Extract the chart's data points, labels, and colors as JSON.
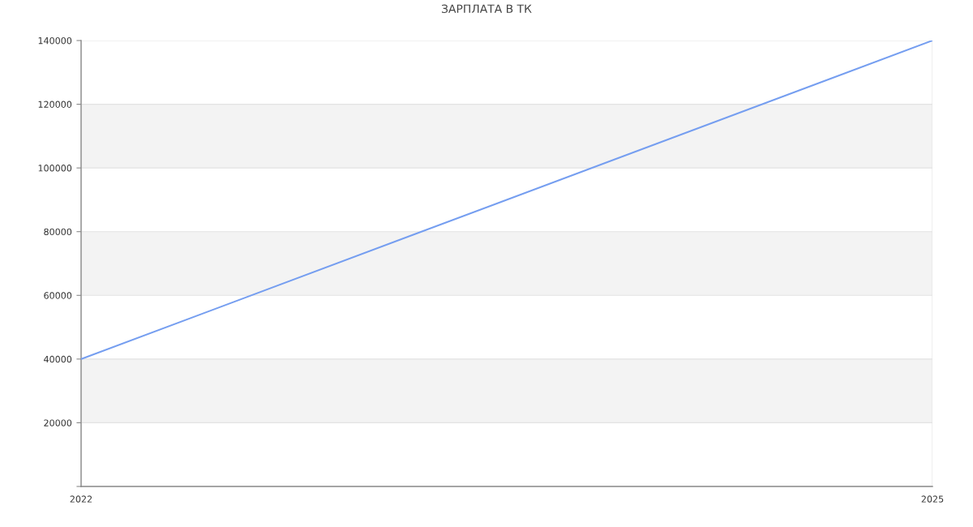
{
  "chart_data": {
    "type": "line",
    "title": "ЗАРПЛАТА В ТК",
    "x": [
      2022,
      2025
    ],
    "series": [
      {
        "color": "#759ef0",
        "values": [
          40000,
          140000
        ]
      }
    ],
    "xlim": [
      2022,
      2025
    ],
    "xticks": [
      2022,
      2025
    ],
    "ylim": [
      0,
      140000
    ],
    "yticks": [
      {
        "value": 0,
        "label": null
      },
      20000,
      40000,
      60000,
      80000,
      100000,
      120000,
      140000
    ],
    "bands": [
      {
        "axis": "y",
        "from": 20000,
        "to": 40000,
        "color": "#f3f3f3"
      },
      {
        "axis": "y",
        "from": 60000,
        "to": 80000,
        "color": "#f3f3f3"
      },
      {
        "axis": "y",
        "from": 100000,
        "to": 120000,
        "color": "#f3f3f3"
      }
    ],
    "grid": true,
    "marker": "none",
    "line_style": "solid"
  }
}
